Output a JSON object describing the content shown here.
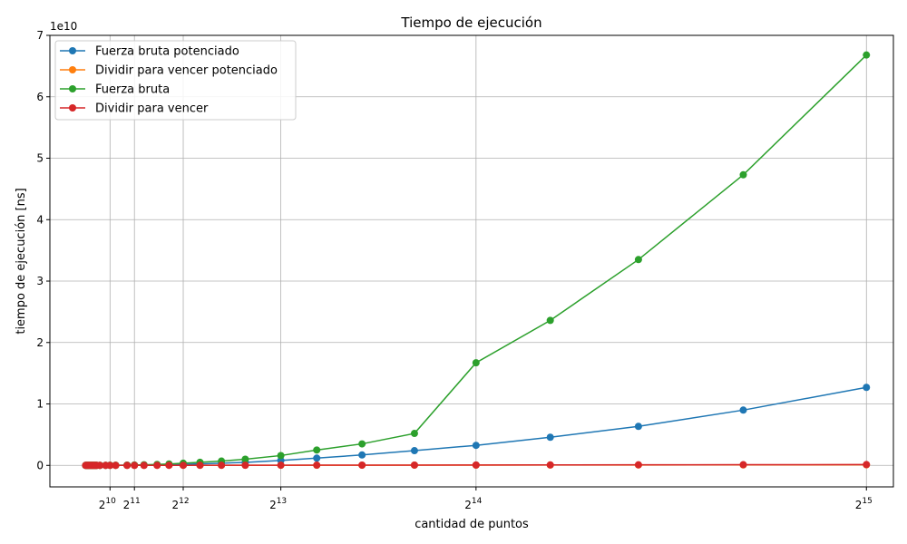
{
  "chart_data": {
    "type": "line",
    "title": "Tiempo de ejecución",
    "xlabel": "cantidad de puntos",
    "ylabel": "tiempo de ejecución [ns]",
    "y_offset_label": "1e10",
    "xlim": [
      -1500,
      33900
    ],
    "ylim": [
      -3500000000.0,
      70000000000.0
    ],
    "grid": true,
    "legend_location": "upper-left",
    "x_ticks": [
      {
        "value": 1024,
        "base": "2",
        "exp": "10"
      },
      {
        "value": 2048,
        "base": "2",
        "exp": "11"
      },
      {
        "value": 4096,
        "base": "2",
        "exp": "12"
      },
      {
        "value": 8192,
        "base": "2",
        "exp": "13"
      },
      {
        "value": 16384,
        "base": "2",
        "exp": "14"
      },
      {
        "value": 32768,
        "base": "2",
        "exp": "15"
      }
    ],
    "y_ticks": [
      {
        "value": 0,
        "label": "0"
      },
      {
        "value": 10000000000.0,
        "label": "1"
      },
      {
        "value": 20000000000.0,
        "label": "2"
      },
      {
        "value": 30000000000.0,
        "label": "3"
      },
      {
        "value": 40000000000.0,
        "label": "4"
      },
      {
        "value": 50000000000.0,
        "label": "5"
      },
      {
        "value": 60000000000.0,
        "label": "6"
      },
      {
        "value": 70000000000.0,
        "label": "7"
      }
    ],
    "x": [
      0,
      46,
      92,
      139,
      185,
      232,
      278,
      324,
      371,
      417,
      464,
      600,
      840,
      1024,
      1260,
      1740,
      2048,
      2450,
      3000,
      3500,
      4096,
      4800,
      5700,
      6700,
      8192,
      9700,
      11600,
      13800,
      16384,
      19500,
      23200,
      27600,
      32768
    ],
    "series": [
      {
        "name": "Fuerza bruta potenciado",
        "color": "#1f77b4",
        "values": [
          0,
          0,
          0,
          0,
          0,
          0,
          0,
          0,
          0,
          0,
          0,
          2000000,
          5000000,
          8000000,
          12000000,
          23000000,
          30000000,
          50000000,
          80000000,
          120000000,
          180000000,
          250000000,
          350000000,
          490000000,
          800000000,
          1180000000,
          1700000000,
          2400000000,
          3260000000,
          4580000000,
          6350000000,
          9000000000,
          12700000000
        ]
      },
      {
        "name": "Dividir para vencer potenciado",
        "color": "#ff7f0e",
        "values": [
          0,
          0,
          0,
          0,
          0,
          0,
          0,
          0,
          0,
          0,
          0,
          0,
          1000000,
          2000000,
          2000000,
          3000000,
          4000000,
          5000000,
          6000000,
          8000000,
          10000000,
          12000000,
          14000000,
          17000000,
          20000000,
          25000000,
          30000000,
          36000000,
          44000000,
          53000000,
          64000000,
          78000000,
          95000000
        ]
      },
      {
        "name": "Fuerza bruta",
        "color": "#2ca02c",
        "values": [
          0,
          0,
          0,
          0,
          0,
          0,
          0,
          0,
          0,
          0,
          0,
          3000000,
          10000000,
          15000000,
          25000000,
          50000000,
          65000000,
          100000000,
          160000000,
          230000000,
          350000000,
          500000000,
          700000000,
          1000000000,
          1600000000,
          2500000000,
          3500000000,
          5200000000,
          16700000000,
          23600000000,
          33500000000,
          47300000000,
          66800000000
        ]
      },
      {
        "name": "Dividir para vencer",
        "color": "#d62728",
        "values": [
          0,
          0,
          0,
          0,
          0,
          0,
          0,
          0,
          0,
          0,
          0,
          0,
          1000000,
          2000000,
          3000000,
          4000000,
          5000000,
          6000000,
          8000000,
          10000000,
          12000000,
          15000000,
          18000000,
          22000000,
          28000000,
          35000000,
          42000000,
          50000000,
          60000000,
          75000000,
          90000000,
          110000000,
          130000000
        ]
      }
    ]
  }
}
